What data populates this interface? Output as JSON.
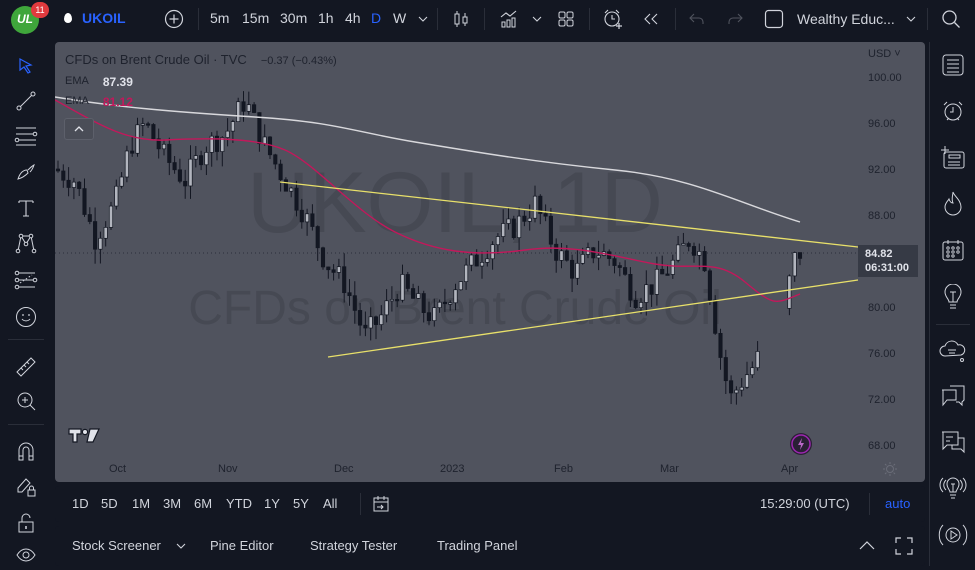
{
  "header": {
    "notification_count": "11",
    "logo_text": "UL",
    "symbol": "UKOIL",
    "intervals": [
      "5m",
      "15m",
      "30m",
      "1h",
      "4h",
      "D",
      "W"
    ],
    "active_interval": "D",
    "layout_name": "Wealthy Educ..."
  },
  "chart": {
    "title": "CFDs on Brent Crude Oil · TVC",
    "change": "−0.37 (−0.43%)",
    "ema1_label": "EMA",
    "ema1_value": "87.39",
    "ema2_label": "EMA",
    "ema2_value": "81.12",
    "watermark_symbol": "UKOIL, 1D",
    "watermark_desc": "CFDs on Brent Crude Oil",
    "currency": "USD",
    "last_price": "84.82",
    "countdown": "06:31:00",
    "price_ticks": [
      "100.00",
      "96.00",
      "92.00",
      "88.00",
      "80.00",
      "76.00",
      "72.00",
      "68.00"
    ],
    "time_ticks": [
      "Oct",
      "Nov",
      "Dec",
      "2023",
      "Feb",
      "Mar",
      "Apr"
    ],
    "colors": {
      "background": "#50535e",
      "ema_slow": "#d8d8dc",
      "ema_fast": "#c2185b",
      "trendline": "#e8e06a",
      "up_candle": "#b2b5be",
      "down_candle": "#131722"
    }
  },
  "range_bar": {
    "ranges": [
      "1D",
      "5D",
      "1M",
      "3M",
      "6M",
      "YTD",
      "1Y",
      "5Y",
      "All"
    ],
    "clock": "15:29:00 (UTC)",
    "scale_mode": "auto"
  },
  "bottom_panel": {
    "tabs": [
      "Stock Screener",
      "Pine Editor",
      "Strategy Tester",
      "Trading Panel"
    ]
  },
  "left_toolbar": {
    "tools": [
      "cursor",
      "trend-line",
      "fib-retracement",
      "brush",
      "text",
      "pattern",
      "prediction",
      "emoji",
      "ruler",
      "zoom-in",
      "magnet",
      "lock-drawings",
      "lock-all",
      "hide"
    ]
  },
  "right_toolbar": {
    "tools": [
      "watchlist",
      "alerts",
      "data-window",
      "hotlist",
      "calendar",
      "ideas",
      "chats",
      "chat-box",
      "streams",
      "signals",
      "live"
    ]
  }
}
